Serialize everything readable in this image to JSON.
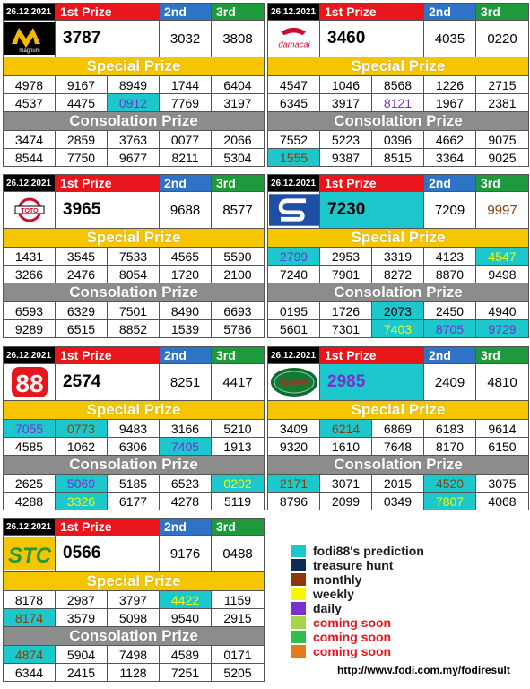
{
  "date": "26.12.2021",
  "labels": {
    "first": "1st Prize",
    "second": "2nd",
    "third": "3rd",
    "special": "Special Prize",
    "consolation": "Consolation Prize"
  },
  "panels": [
    {
      "id": "magnum",
      "logo": "magnum-logo",
      "logo_text": "magnum",
      "first": "3787",
      "second": "3032",
      "third": "3808",
      "special": [
        [
          "4978",
          "9167",
          "8949",
          "1744",
          "6404"
        ],
        [
          "4537",
          "4475",
          "0912",
          "7769",
          "3197"
        ]
      ],
      "consolation": [
        [
          "3474",
          "2859",
          "3763",
          "0077",
          "2066"
        ],
        [
          "8544",
          "7750",
          "9677",
          "8211",
          "5304"
        ]
      ]
    },
    {
      "id": "damacai",
      "logo": "damacai-logo",
      "logo_text": "damacai",
      "first": "3460",
      "second": "4035",
      "third": "0220",
      "special": [
        [
          "4547",
          "1046",
          "8568",
          "1226",
          "2715"
        ],
        [
          "6345",
          "3917",
          "8121",
          "1967",
          "2381"
        ]
      ],
      "consolation": [
        [
          "7552",
          "5223",
          "0396",
          "4662",
          "9075"
        ],
        [
          "1555",
          "9387",
          "8515",
          "3364",
          "9025"
        ]
      ]
    },
    {
      "id": "toto",
      "logo": "toto-logo",
      "logo_text": "TOTO",
      "first": "3965",
      "second": "9688",
      "third": "8577",
      "special": [
        [
          "1431",
          "3545",
          "7533",
          "4565",
          "5590"
        ],
        [
          "3266",
          "2476",
          "8054",
          "1720",
          "2100"
        ]
      ],
      "consolation": [
        [
          "6593",
          "6329",
          "7501",
          "8490",
          "6693"
        ],
        [
          "9289",
          "6515",
          "8852",
          "1539",
          "5786"
        ]
      ]
    },
    {
      "id": "singapore",
      "logo": "singapore-logo",
      "logo_text": "S",
      "first": "7230",
      "second": "7209",
      "third": "9997",
      "special": [
        [
          "2799",
          "2953",
          "3319",
          "4123",
          "4547"
        ],
        [
          "7240",
          "7901",
          "8272",
          "8870",
          "9498"
        ]
      ],
      "consolation": [
        [
          "0195",
          "1726",
          "2073",
          "2450",
          "4940"
        ],
        [
          "5601",
          "7301",
          "7403",
          "8705",
          "9729"
        ]
      ]
    },
    {
      "id": "sabah88",
      "logo": "sabah88-logo",
      "logo_text": "88",
      "first": "2574",
      "second": "8251",
      "third": "4417",
      "special": [
        [
          "7055",
          "0773",
          "9483",
          "3166",
          "5210"
        ],
        [
          "4585",
          "1062",
          "6306",
          "7405",
          "1913"
        ]
      ],
      "consolation": [
        [
          "2625",
          "5069",
          "5185",
          "6523",
          "0202"
        ],
        [
          "4288",
          "3326",
          "6177",
          "4278",
          "5119"
        ]
      ]
    },
    {
      "id": "cashsweep",
      "logo": "cashsweep-logo",
      "logo_text": "CASH",
      "first": "2985",
      "second": "2409",
      "third": "4810",
      "special": [
        [
          "3409",
          "6214",
          "6869",
          "6183",
          "9614"
        ],
        [
          "9320",
          "1610",
          "7648",
          "8170",
          "6150"
        ]
      ],
      "consolation": [
        [
          "2171",
          "3071",
          "2015",
          "4520",
          "3075"
        ],
        [
          "8796",
          "2099",
          "0349",
          "7807",
          "4068"
        ]
      ]
    },
    {
      "id": "stc",
      "logo": "stc-logo",
      "logo_text": "STC",
      "first": "0566",
      "second": "9176",
      "third": "0488",
      "special": [
        [
          "8178",
          "2987",
          "3797",
          "4422",
          "1159"
        ],
        [
          "8174",
          "3579",
          "5098",
          "9540",
          "2915"
        ]
      ],
      "consolation": [
        [
          "4874",
          "5904",
          "7498",
          "4589",
          "0171"
        ],
        [
          "6344",
          "2415",
          "1128",
          "7251",
          "5205"
        ]
      ]
    }
  ],
  "legend": [
    {
      "label": "fodi88's prediction",
      "color": "#1cc8cc",
      "red": false
    },
    {
      "label": "treasure hunt",
      "color": "#0d2b55",
      "red": false
    },
    {
      "label": "monthly",
      "color": "#8b3b0a",
      "red": false
    },
    {
      "label": "weekly",
      "color": "#f7f700",
      "red": false
    },
    {
      "label": "daily",
      "color": "#7b2fd0",
      "red": false
    },
    {
      "label": "coming soon",
      "color": "#a4d64a",
      "red": true
    },
    {
      "label": "coming soon",
      "color": "#2fbf4f",
      "red": true
    },
    {
      "label": "coming soon",
      "color": "#e47a1a",
      "red": true
    }
  ],
  "url": "http://www.fodi.com.my/fodiresult",
  "highlights": {
    "magnum": {
      "s-1-2": "hl-cyan hl-purple"
    },
    "damacai": {
      "s-1-2": "hl-purple",
      "c-1-0": "hl-cyan hl-brown"
    },
    "singapore": {
      "main-first": "hl-cyan",
      "main-third": "hl-brown",
      "s-0-0": "hl-cyan hl-purple",
      "s-0-4": "hl-cyan hl-yellow",
      "c-0-2": "hl-cyan",
      "c-1-2": "hl-cyan hl-yellow",
      "c-1-3": "hl-cyan hl-purple",
      "c-1-4": "hl-cyan hl-purple"
    },
    "sabah88": {
      "s-0-0": "hl-cyan hl-purple",
      "s-0-1": "hl-cyan hl-brown",
      "s-1-3": "hl-cyan hl-purple",
      "c-0-1": "hl-cyan hl-purple",
      "c-0-4": "hl-cyan hl-yellow",
      "c-1-1": "hl-cyan hl-yellow"
    },
    "cashsweep": {
      "main-first": "hl-cyan hl-purple",
      "s-0-1": "hl-cyan hl-brown",
      "c-0-0": "hl-cyan hl-brown",
      "c-0-3": "hl-cyan hl-brown",
      "c-1-3": "hl-cyan hl-yellow"
    },
    "stc": {
      "s-0-3": "hl-cyan hl-yellow",
      "s-1-0": "hl-cyan hl-brown",
      "c-0-0": "hl-cyan hl-brown"
    }
  }
}
